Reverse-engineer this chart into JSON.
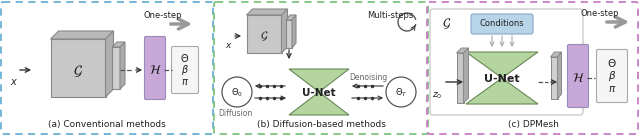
{
  "fig_width": 6.4,
  "fig_height": 1.36,
  "dpi": 100,
  "bg_color": "#ffffff",
  "panel_a_title": "(a) Conventional methods",
  "panel_b_title": "(b) Diffusion-based methods",
  "panel_c_title": "(c) DPMesh",
  "border_a": "#6ab0d4",
  "border_b": "#7dc47d",
  "border_c": "#c87dc8",
  "unet_color": "#b5d5a0",
  "h_color": "#c8a8d8",
  "gray_block": "#c0c0c0",
  "gray_light": "#d8d8d8",
  "conditions_color": "#b8d4e8",
  "conditions_border": "#88aacc",
  "output_box_color": "#f5f5f5",
  "arrow_dark": "#333333",
  "arrow_gray": "#999999",
  "text_dark": "#222222",
  "text_gray": "#666666"
}
